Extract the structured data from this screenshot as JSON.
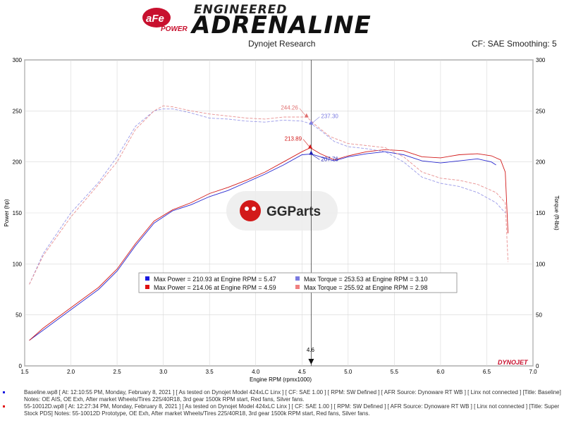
{
  "header": {
    "brand_top": "ENGINEERED",
    "brand_main": "ADRENALINE",
    "logo_text": "aFe",
    "logo_sub": "POWER",
    "source": "Dynojet Research",
    "settings": "CF: SAE Smoothing: 5"
  },
  "watermark": {
    "text": "GGParts"
  },
  "dynojet_mark": "DYNOJET",
  "chart_data": {
    "type": "line",
    "xlabel": "Engine RPM (rpmx1000)",
    "ylabel_left": "Power (hp)",
    "ylabel_right": "Torque (ft-lbs)",
    "xlim": [
      1.5,
      7.0
    ],
    "ylim": [
      0,
      300
    ],
    "x_ticks": [
      "1.5",
      "2.0",
      "2.5",
      "3.0",
      "3.5",
      "4.0",
      "4.5",
      "5.0",
      "5.5",
      "6.0",
      "6.5",
      "7.0"
    ],
    "y_ticks": [
      "0",
      "50",
      "100",
      "150",
      "200",
      "250",
      "300"
    ],
    "grid": true,
    "cursor": {
      "x": 4.6,
      "label": "4.6"
    },
    "series": [
      {
        "name": "Baseline Power",
        "color": "#2a2ad0",
        "dash": false,
        "points": [
          [
            1.55,
            25
          ],
          [
            1.7,
            35
          ],
          [
            2.0,
            55
          ],
          [
            2.3,
            75
          ],
          [
            2.5,
            93
          ],
          [
            2.7,
            118
          ],
          [
            2.9,
            140
          ],
          [
            3.1,
            152
          ],
          [
            3.3,
            158
          ],
          [
            3.5,
            166
          ],
          [
            3.7,
            172
          ],
          [
            3.9,
            180
          ],
          [
            4.1,
            188
          ],
          [
            4.3,
            197
          ],
          [
            4.5,
            207
          ],
          [
            4.6,
            207.76
          ],
          [
            4.7,
            205
          ],
          [
            4.85,
            201
          ],
          [
            5.0,
            205
          ],
          [
            5.2,
            208
          ],
          [
            5.4,
            210
          ],
          [
            5.6,
            207
          ],
          [
            5.8,
            201
          ],
          [
            6.0,
            199
          ],
          [
            6.2,
            201
          ],
          [
            6.4,
            203
          ],
          [
            6.55,
            200
          ],
          [
            6.6,
            197
          ]
        ]
      },
      {
        "name": "Prototype Power",
        "color": "#d21a1a",
        "dash": false,
        "points": [
          [
            1.55,
            25
          ],
          [
            1.7,
            37
          ],
          [
            2.0,
            57
          ],
          [
            2.3,
            77
          ],
          [
            2.5,
            95
          ],
          [
            2.7,
            120
          ],
          [
            2.9,
            142
          ],
          [
            3.1,
            153
          ],
          [
            3.3,
            160
          ],
          [
            3.5,
            169
          ],
          [
            3.7,
            175
          ],
          [
            3.9,
            182
          ],
          [
            4.1,
            190
          ],
          [
            4.3,
            200
          ],
          [
            4.5,
            210
          ],
          [
            4.59,
            213.89
          ],
          [
            4.7,
            208
          ],
          [
            4.85,
            202
          ],
          [
            5.0,
            206
          ],
          [
            5.2,
            210
          ],
          [
            5.4,
            212
          ],
          [
            5.6,
            211
          ],
          [
            5.8,
            205
          ],
          [
            6.0,
            204
          ],
          [
            6.2,
            207
          ],
          [
            6.4,
            208
          ],
          [
            6.55,
            206
          ],
          [
            6.65,
            202
          ],
          [
            6.7,
            190
          ],
          [
            6.73,
            130
          ]
        ]
      },
      {
        "name": "Baseline Torque",
        "color": "#9a9ae8",
        "dash": true,
        "points": [
          [
            1.55,
            80
          ],
          [
            1.7,
            110
          ],
          [
            2.0,
            150
          ],
          [
            2.3,
            180
          ],
          [
            2.5,
            205
          ],
          [
            2.7,
            235
          ],
          [
            2.9,
            250
          ],
          [
            3.0,
            252
          ],
          [
            3.1,
            252
          ],
          [
            3.3,
            248
          ],
          [
            3.5,
            243
          ],
          [
            3.7,
            242
          ],
          [
            3.9,
            240
          ],
          [
            4.1,
            239
          ],
          [
            4.3,
            241
          ],
          [
            4.5,
            240
          ],
          [
            4.6,
            237.3
          ],
          [
            4.7,
            231
          ],
          [
            4.85,
            220
          ],
          [
            5.0,
            215
          ],
          [
            5.2,
            213
          ],
          [
            5.4,
            210
          ],
          [
            5.6,
            200
          ],
          [
            5.8,
            185
          ],
          [
            6.0,
            179
          ],
          [
            6.2,
            176
          ],
          [
            6.4,
            170
          ],
          [
            6.6,
            160
          ],
          [
            6.7,
            150
          ]
        ]
      },
      {
        "name": "Prototype Torque",
        "color": "#e89090",
        "dash": true,
        "points": [
          [
            1.55,
            80
          ],
          [
            1.7,
            108
          ],
          [
            2.0,
            146
          ],
          [
            2.3,
            178
          ],
          [
            2.5,
            200
          ],
          [
            2.7,
            232
          ],
          [
            2.9,
            250
          ],
          [
            3.0,
            255
          ],
          [
            3.1,
            254
          ],
          [
            3.3,
            250
          ],
          [
            3.5,
            247
          ],
          [
            3.7,
            245
          ],
          [
            3.9,
            243
          ],
          [
            4.1,
            242
          ],
          [
            4.3,
            244
          ],
          [
            4.5,
            244
          ],
          [
            4.55,
            244.26
          ],
          [
            4.65,
            236
          ],
          [
            4.8,
            225
          ],
          [
            5.0,
            218
          ],
          [
            5.2,
            216
          ],
          [
            5.4,
            214
          ],
          [
            5.6,
            205
          ],
          [
            5.8,
            190
          ],
          [
            6.0,
            184
          ],
          [
            6.2,
            182
          ],
          [
            6.4,
            178
          ],
          [
            6.6,
            170
          ],
          [
            6.7,
            160
          ],
          [
            6.73,
            102
          ]
        ]
      }
    ],
    "annotations": [
      {
        "x": 4.55,
        "y": 244.26,
        "text": "244.26",
        "color": "#e07070",
        "side": "left"
      },
      {
        "x": 4.6,
        "y": 237.3,
        "text": "237.30",
        "color": "#7b7be0",
        "side": "right"
      },
      {
        "x": 4.59,
        "y": 213.89,
        "text": "213.89",
        "color": "#d21a1a",
        "side": "left"
      },
      {
        "x": 4.6,
        "y": 207.76,
        "text": "207.76",
        "color": "#1a1ab0",
        "side": "right"
      }
    ],
    "legend": {
      "placement": "center",
      "rows": [
        {
          "color": "#1a1ae0",
          "text": "Max Power = 210.93 at Engine RPM = 5.47"
        },
        {
          "color": "#7b7be0",
          "text": "Max Torque = 253.53 at Engine RPM = 3.10"
        },
        {
          "color": "#e01010",
          "text": "Max Power = 214.06 at Engine RPM = 4.59"
        },
        {
          "color": "#f08080",
          "text": "Max Torque = 255.92 at Engine RPM = 2.98"
        }
      ]
    }
  },
  "footer": {
    "line1": "Baseline.wp8 [ At: 12:10:55 PM, Monday, February 8, 2021 ] [ As tested on Dynojet Model 424xLC Linx ] [ CF: SAE 1.00 ] [ RPM: SW Defined ] [ AFR Source: Dynoware RT WB ] [ Linx not connected ] [Title: Baseline]  Notes: OE AIS, OE Exh, After market Wheels/Tires 225/40R18, 3rd gear 1500k RPM start, Red fans, Silver fans.",
    "line2": "55-10012D.wp8 [ At: 12:27:34 PM, Monday, February 8, 2021 ] [ As tested on Dynojet Model 424xLC Linx ] [ CF: SAE 1.00 ] [ RPM: SW Defined ] [ AFR Source: Dynoware RT WB ] [ Linx not connected ] [Title: Super Stock PDS] Notes: 55-10012D Prototype, OE Exh, After market Wheels/Tires 225/40R18, 3rd gear 1500k RPM start, Red fans, Silver fans.",
    "dot1_color": "#1a1ae0",
    "dot2_color": "#e01010"
  }
}
